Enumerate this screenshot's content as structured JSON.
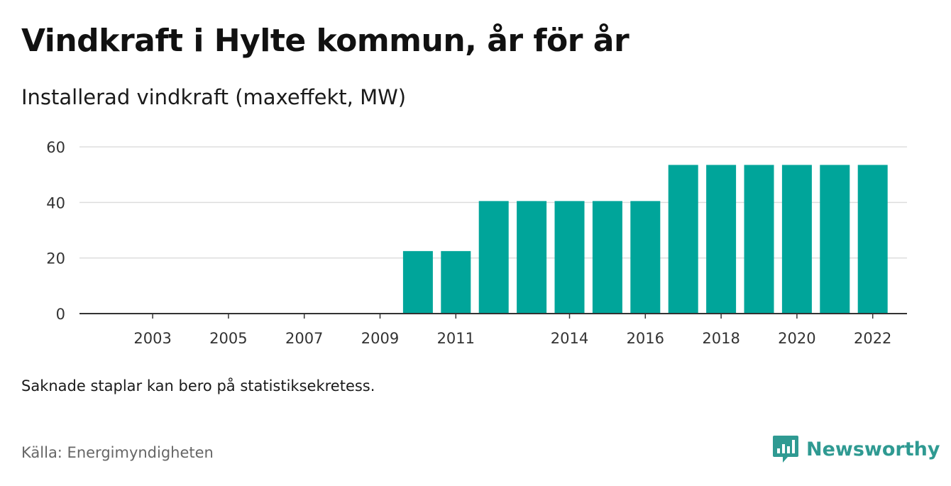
{
  "header": {
    "title": "Vindkraft i Hylte kommun, år för år",
    "subtitle": "Installerad vindkraft (maxeffekt, MW)"
  },
  "footer": {
    "note": "Saknade staplar kan bero på statistiksekretess.",
    "source": "Källa: Energimyndigheten",
    "brand": "Newsworthy"
  },
  "colors": {
    "bar": "#00a59a",
    "grid": "#dddddd",
    "axis": "#333333",
    "brand": "#2f9a92"
  },
  "chart_data": {
    "type": "bar",
    "title": "Vindkraft i Hylte kommun, år för år",
    "subtitle": "Installerad vindkraft (maxeffekt, MW)",
    "xlabel": "",
    "ylabel": "",
    "ylim": [
      0,
      60
    ],
    "yticks": [
      0,
      20,
      40,
      60
    ],
    "grid": true,
    "categories": [
      "2002",
      "2003",
      "2004",
      "2005",
      "2006",
      "2007",
      "2008",
      "2009",
      "2010",
      "2011",
      "2012",
      "2013",
      "2014",
      "2015",
      "2016",
      "2017",
      "2018",
      "2019",
      "2020",
      "2021",
      "2022"
    ],
    "x_tick_labels": [
      "2003",
      "2005",
      "2007",
      "2009",
      "2011",
      "2014",
      "2016",
      "2018",
      "2020",
      "2022"
    ],
    "values": [
      0,
      0,
      0,
      0,
      0,
      0,
      0,
      0,
      22.5,
      22.5,
      40.5,
      40.5,
      40.5,
      40.5,
      40.5,
      53.5,
      53.5,
      53.5,
      53.5,
      53.5,
      53.5
    ]
  }
}
